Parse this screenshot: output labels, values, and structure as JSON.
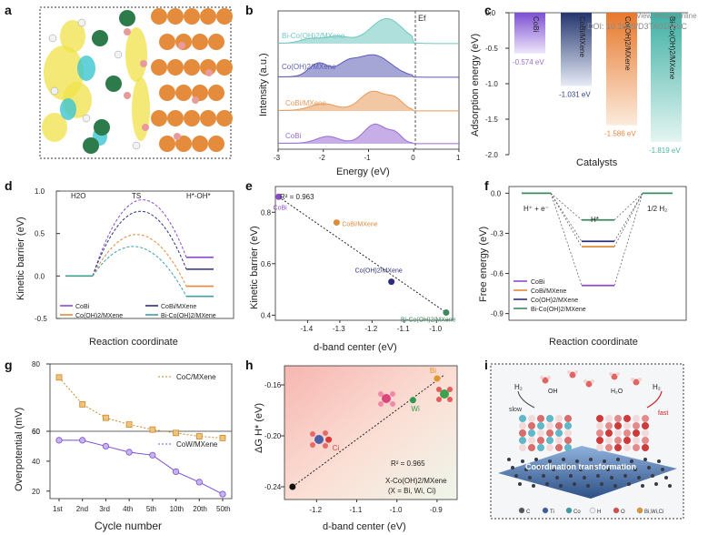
{
  "watermark": [
    "View Article Online",
    "DOI: 10.1039/D3TA01856C"
  ],
  "panel_labels": [
    "a",
    "b",
    "c",
    "d",
    "e",
    "f",
    "g",
    "h",
    "i"
  ],
  "chart_data": [
    {
      "panel": "b",
      "type": "area",
      "xlabel": "Energy (eV)",
      "ylabel": "Intensity (a.u.)",
      "xlim": [
        -3,
        1
      ],
      "xticks": [
        -3,
        -2,
        -1,
        0,
        1
      ],
      "fermi_label": "Ef",
      "series": [
        {
          "name": "Bi-Co(OH)2/MXene",
          "color": "#6ec7c0"
        },
        {
          "name": "Co(OH)2/MXene",
          "color": "#5b5bb5"
        },
        {
          "name": "CoBi/MXene",
          "color": "#e79a5a"
        },
        {
          "name": "CoBi",
          "color": "#9b6bd4"
        }
      ]
    },
    {
      "panel": "c",
      "type": "bar",
      "xlabel": "Catalysts",
      "ylabel": "Adsorption energy (eV)",
      "ylim": [
        -2.0,
        0.0
      ],
      "yticks": [
        0.0,
        -0.5,
        -1.0,
        -1.5,
        -2.0
      ],
      "categories": [
        "CoBi",
        "CoBi/MXene",
        "Co(OH)2/MXene",
        "Bi-Co(OH)2/MXene"
      ],
      "values": [
        -0.574,
        -1.031,
        -1.586,
        -1.819
      ],
      "value_labels": [
        "-0.574 eV",
        "-1.031 eV",
        "-1.586 eV",
        "-1.819 eV"
      ],
      "colors": [
        "#9b6bd4",
        "#2b3f8e",
        "#e8843c",
        "#4bb5a8"
      ]
    },
    {
      "panel": "d",
      "type": "line",
      "xlabel": "Reaction coordinate",
      "ylabel": "Kinetic barrier (eV)",
      "ylim": [
        -0.5,
        1.0
      ],
      "yticks": [
        1.0,
        0.5,
        0.0,
        -0.5
      ],
      "stage_labels": [
        "H2O",
        "TS",
        "H*-OH*"
      ],
      "series": [
        {
          "name": "CoBi",
          "ts": 0.86,
          "final": 0.22,
          "color": "#8a4bd1"
        },
        {
          "name": "CoBi/MXene",
          "ts": 0.76,
          "final": 0.08,
          "color": "#2b2f7a"
        },
        {
          "name": "Co(OH)2/MXene",
          "ts": 0.53,
          "final": -0.12,
          "color": "#e08a3c"
        },
        {
          "name": "Bi-Co(OH)2/MXene",
          "ts": 0.41,
          "final": -0.24,
          "color": "#3e9fa3"
        }
      ]
    },
    {
      "panel": "e",
      "type": "scatter",
      "xlabel": "d-band center (eV)",
      "ylabel": "Kinetic barrier (eV)",
      "xlim": [
        -1.5,
        -0.95
      ],
      "ylim": [
        0.38,
        0.9
      ],
      "xticks": [
        -1.4,
        -1.3,
        -1.2,
        -1.1,
        -1.0
      ],
      "yticks": [
        0.4,
        0.6,
        0.8
      ],
      "r2": "R² = 0.963",
      "points": [
        {
          "name": "CoBi",
          "x": -1.49,
          "y": 0.86,
          "color": "#8a4bd1"
        },
        {
          "name": "CoBi/MXene",
          "x": -1.31,
          "y": 0.76,
          "color": "#e08a3c"
        },
        {
          "name": "Co(OH)2/MXene",
          "x": -1.14,
          "y": 0.53,
          "color": "#2b2f7a"
        },
        {
          "name": "Bi-Co(OH)2/MXene",
          "x": -0.97,
          "y": 0.41,
          "color": "#3e8a5c"
        }
      ]
    },
    {
      "panel": "f",
      "type": "line",
      "xlabel": "Reaction coordinate",
      "ylabel": "Free energy (eV)",
      "ylim": [
        -0.95,
        0.05
      ],
      "yticks": [
        0.0,
        -0.3,
        -0.6,
        -0.9
      ],
      "stage_labels": [
        "H⁺ + e⁻",
        "H*",
        "1/2 H₂"
      ],
      "series": [
        {
          "name": "CoBi",
          "hstar": -0.69,
          "color": "#8a4bd1"
        },
        {
          "name": "CoBi/MXene",
          "hstar": -0.4,
          "color": "#e08a3c"
        },
        {
          "name": "Co(OH)2/MXene",
          "hstar": -0.36,
          "color": "#2b2f7a"
        },
        {
          "name": "Bi-Co(OH)2/MXene",
          "hstar": -0.2,
          "color": "#3e8a5c"
        }
      ]
    },
    {
      "panel": "g",
      "type": "line",
      "xlabel": "Cycle number",
      "ylabel": "Overpotential (mV)",
      "categories": [
        "1st",
        "2nd",
        "3rd",
        "4th",
        "5th",
        "10th",
        "20th",
        "50th"
      ],
      "top": {
        "name": "CoC/MXene",
        "ylim": [
          60,
          80
        ],
        "yticks": [
          80,
          60
        ],
        "values": [
          76,
          68,
          64,
          62,
          60.5,
          59.5,
          58.5,
          58
        ],
        "color": "#c98a2e"
      },
      "bottom": {
        "name": "CoW/MXene",
        "ylim": [
          15,
          60
        ],
        "yticks": [
          60,
          40,
          20
        ],
        "values": [
          54,
          54,
          50,
          46,
          44,
          33,
          26,
          18
        ],
        "color": "#7a4fd0"
      }
    },
    {
      "panel": "h",
      "type": "scatter",
      "xlabel": "d-band center (eV)",
      "ylabel": "ΔG H* (eV)",
      "xlim": [
        -1.28,
        -0.85
      ],
      "ylim": [
        -0.25,
        -0.145
      ],
      "xticks": [
        -1.2,
        -1.1,
        -1.0,
        -0.9
      ],
      "yticks": [
        -0.16,
        -0.2,
        -0.24
      ],
      "r2": "R² = 0.965",
      "caption": [
        "X-Co(OH)2/MXene",
        "(X = Bi, Wi, Ci)"
      ],
      "points": [
        {
          "name": "",
          "x": -1.26,
          "y": -0.24,
          "color": "#111111"
        },
        {
          "name": "Ci",
          "x": -1.17,
          "y": -0.203,
          "color": "#d83a3a"
        },
        {
          "name": "Wi",
          "x": -0.96,
          "y": -0.172,
          "color": "#2f9a4f"
        },
        {
          "name": "Bi",
          "x": -0.9,
          "y": -0.155,
          "color": "#e0962b"
        }
      ]
    }
  ],
  "panel_i": {
    "labels": [
      "H₂",
      "OH",
      "H₂O",
      "H₂",
      "slow",
      "fast",
      "Coordination transformation"
    ],
    "legend": [
      "C",
      "Ti",
      "Co",
      "H",
      "O",
      "Bi,Wi,Ci"
    ]
  }
}
